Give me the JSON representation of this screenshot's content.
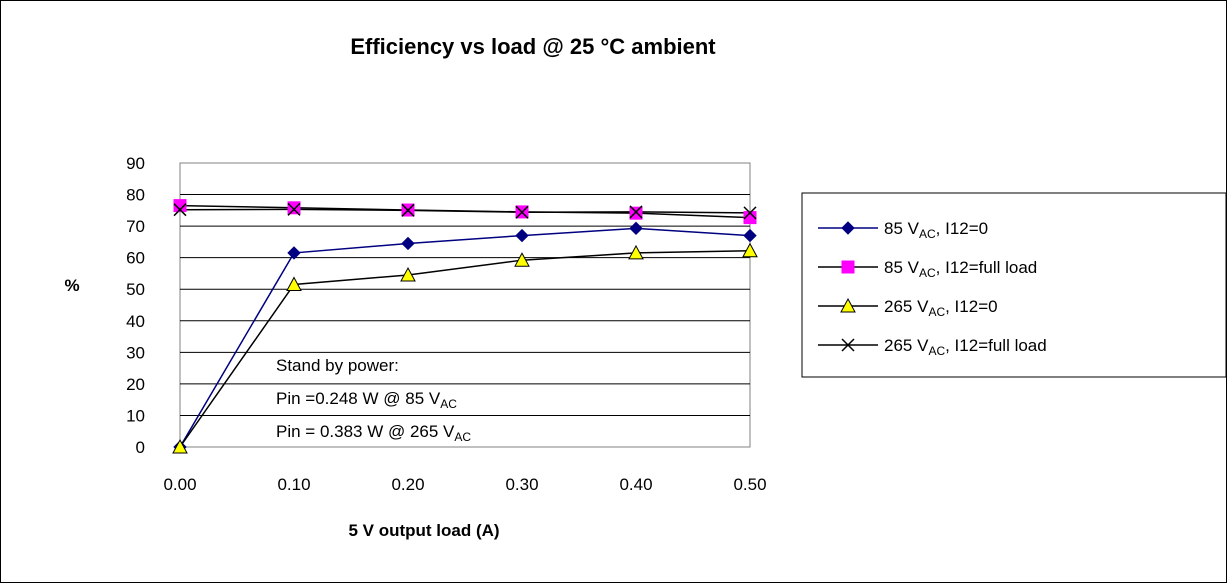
{
  "chart_data": {
    "type": "line",
    "title": "Efficiency vs load @ 25 °C ambient",
    "xlabel": "5 V output load (A)",
    "ylabel": "%",
    "x": [
      0.0,
      0.1,
      0.2,
      0.3,
      0.4,
      0.5
    ],
    "xticks": [
      "0.00",
      "0.10",
      "0.20",
      "0.30",
      "0.40",
      "0.50"
    ],
    "yticks": [
      "0",
      "10",
      "20",
      "30",
      "40",
      "50",
      "60",
      "70",
      "80",
      "90"
    ],
    "xlim": [
      0,
      0.5
    ],
    "ylim": [
      0,
      90
    ],
    "grid": "horizontal",
    "legend_position": "right",
    "series": [
      {
        "name": "85 V",
        "name_sub": "AC",
        "name_suffix": ", I12=0",
        "color": "#000080",
        "marker": "diamond",
        "values": [
          0,
          61.5,
          64.5,
          67,
          69.3,
          67
        ]
      },
      {
        "name": "85 V",
        "name_sub": "AC",
        "name_suffix": ", I12=full load",
        "color": "#ff00ff",
        "marker": "square",
        "values": [
          76.5,
          75.8,
          75.1,
          74.5,
          74.1,
          72.7
        ]
      },
      {
        "name": "265 V",
        "name_sub": "AC",
        "name_suffix": ", I12=0",
        "color": "#ffff00",
        "marker": "triangle",
        "values": [
          0,
          51.5,
          54.5,
          59.2,
          61.5,
          62.2
        ]
      },
      {
        "name": "265 V",
        "name_sub": "AC",
        "name_suffix": ", I12=full load",
        "color": "#000000",
        "marker": "x",
        "values": [
          75.2,
          75.3,
          75.0,
          74.4,
          74.5,
          74.2
        ]
      }
    ],
    "annotation": {
      "line1": "Stand by power:",
      "line2": "Pin =0.248 W @ 85 V",
      "line2_sub": "AC",
      "line3": "Pin = 0.383 W @ 265 V",
      "line3_sub": "AC"
    }
  }
}
